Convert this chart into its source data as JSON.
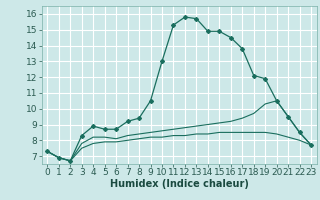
{
  "xlabel": "Humidex (Indice chaleur)",
  "background_color": "#cde8e8",
  "grid_color": "#b0d4d4",
  "line_color": "#1a6e5e",
  "x_ticks": [
    0,
    1,
    2,
    3,
    4,
    5,
    6,
    7,
    8,
    9,
    10,
    11,
    12,
    13,
    14,
    15,
    16,
    17,
    18,
    19,
    20,
    21,
    22,
    23
  ],
  "ylim": [
    6.5,
    16.5
  ],
  "xlim": [
    -0.5,
    23.5
  ],
  "yticks": [
    7,
    8,
    9,
    10,
    11,
    12,
    13,
    14,
    15,
    16
  ],
  "line1_x": [
    0,
    1,
    2,
    3,
    4,
    5,
    6,
    7,
    8,
    9,
    10,
    11,
    12,
    13,
    14,
    15,
    16,
    17,
    18,
    19,
    20,
    21,
    22,
    23
  ],
  "line1_y": [
    7.3,
    6.9,
    6.7,
    8.3,
    8.9,
    8.7,
    8.7,
    9.2,
    9.4,
    10.5,
    13.0,
    15.3,
    15.8,
    15.7,
    14.9,
    14.9,
    14.5,
    13.8,
    12.1,
    11.9,
    10.5,
    9.5,
    8.5,
    7.7
  ],
  "line2_x": [
    0,
    1,
    2,
    3,
    4,
    5,
    6,
    7,
    8,
    9,
    10,
    11,
    12,
    13,
    14,
    15,
    16,
    17,
    18,
    19,
    20,
    21,
    22,
    23
  ],
  "line2_y": [
    7.3,
    6.9,
    6.7,
    7.8,
    8.2,
    8.2,
    8.1,
    8.3,
    8.4,
    8.5,
    8.6,
    8.7,
    8.8,
    8.9,
    9.0,
    9.1,
    9.2,
    9.4,
    9.7,
    10.3,
    10.5,
    9.5,
    8.5,
    7.7
  ],
  "line3_x": [
    0,
    1,
    2,
    3,
    4,
    5,
    6,
    7,
    8,
    9,
    10,
    11,
    12,
    13,
    14,
    15,
    16,
    17,
    18,
    19,
    20,
    21,
    22,
    23
  ],
  "line3_y": [
    7.3,
    6.9,
    6.7,
    7.5,
    7.8,
    7.9,
    7.9,
    8.0,
    8.1,
    8.2,
    8.2,
    8.3,
    8.3,
    8.4,
    8.4,
    8.5,
    8.5,
    8.5,
    8.5,
    8.5,
    8.4,
    8.2,
    8.0,
    7.7
  ],
  "tick_fontsize": 6.5,
  "xlabel_fontsize": 7,
  "marker_size": 2.0
}
